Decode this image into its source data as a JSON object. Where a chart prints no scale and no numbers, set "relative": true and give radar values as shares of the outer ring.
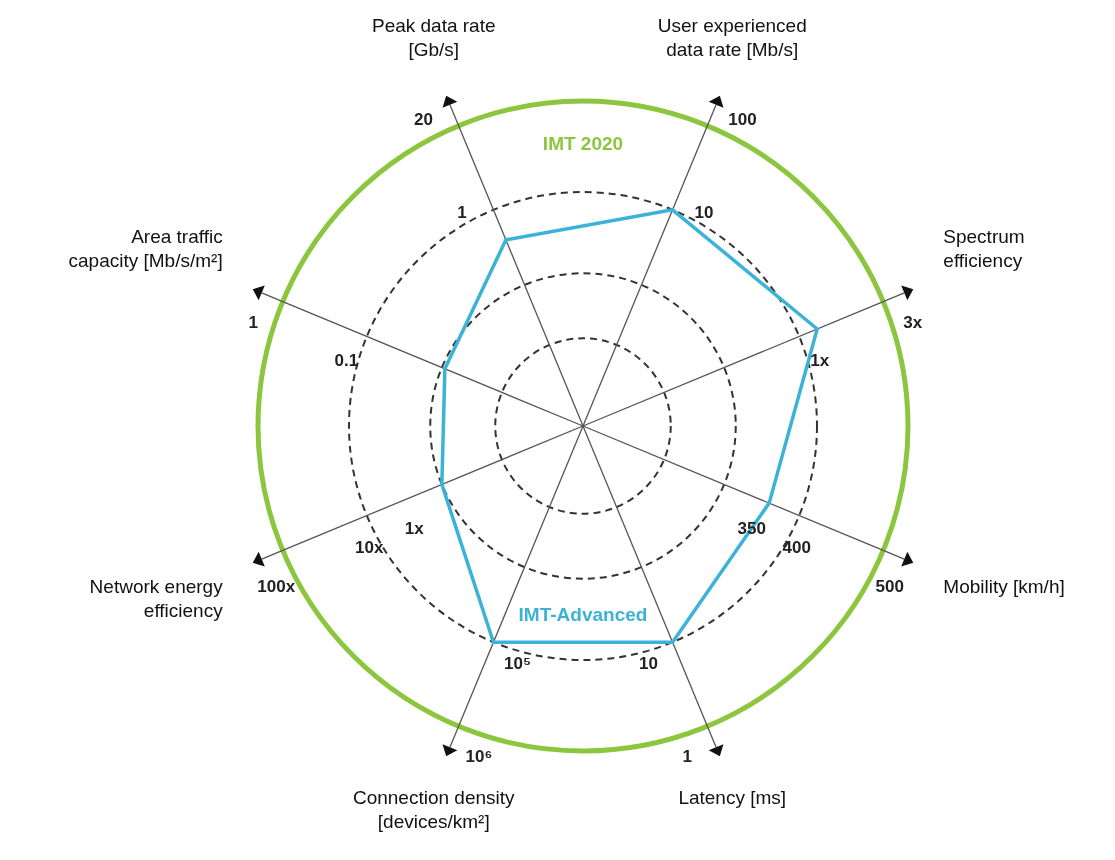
{
  "chart_data": {
    "type": "radar",
    "relative": true,
    "categories": [
      "Peak data rate [Gb/s]",
      "User experienced data rate [Mb/s]",
      "Spectrum efficiency",
      "Mobility [km/h]",
      "Latency [ms]",
      "Connection density [devices/km²]",
      "Network energy efficiency",
      "Area traffic capacity [Mb/s/m²]"
    ],
    "series": [
      {
        "name": "IMT-Advanced",
        "color": "#3bb3d6",
        "values": [
          0.62,
          0.72,
          0.78,
          0.62,
          0.72,
          0.72,
          0.47,
          0.46
        ]
      }
    ],
    "annotations": [
      "IMT 2020",
      {
        "text": "20",
        "x": "Peak data rate [Gb/s]"
      },
      {
        "text": "1",
        "x": "Peak data rate [Gb/s]"
      },
      {
        "text": "100",
        "x": "User experienced data rate [Mb/s]"
      },
      {
        "text": "10",
        "x": "User experienced data rate [Mb/s]"
      },
      {
        "text": "3x",
        "x": "Spectrum efficiency"
      },
      {
        "text": "1x",
        "x": "Spectrum efficiency"
      },
      {
        "text": "500",
        "x": "Mobility [km/h]"
      },
      {
        "text": "400",
        "x": "Mobility [km/h]"
      },
      {
        "text": "350",
        "x": "Mobility [km/h]"
      },
      {
        "text": "1",
        "x": "Latency [ms]"
      },
      {
        "text": "10",
        "x": "Latency [ms]"
      },
      {
        "text": "10⁶",
        "x": "Connection density [devices/km²]"
      },
      {
        "text": "10⁵",
        "x": "Connection density [devices/km²]"
      },
      {
        "text": "100x",
        "x": "Network energy efficiency"
      },
      {
        "text": "10x",
        "x": "Network energy efficiency"
      },
      {
        "text": "1x",
        "x": "Network energy efficiency"
      },
      {
        "text": "1",
        "x": "Area traffic capacity [Mb/s/m²]"
      },
      {
        "text": "0.1",
        "x": "Area traffic capacity [Mb/s/m²]"
      }
    ]
  }
}
